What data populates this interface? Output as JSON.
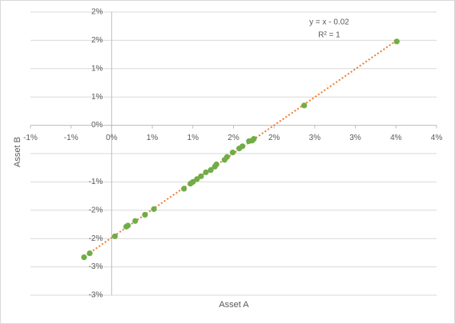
{
  "chart_data": {
    "type": "scatter",
    "x_label": "Asset A",
    "y_label": "Asset B",
    "trendline": {
      "equation": "y = x - 0.02",
      "r_squared": "R² = 1",
      "color": "#ed7d31"
    },
    "series": [
      {
        "name": "Asset B",
        "color": "#70ad47",
        "x": [
          -0.34,
          -0.27,
          0.04,
          0.18,
          0.2,
          0.29,
          0.41,
          0.52,
          0.89,
          0.97,
          1.0,
          1.05,
          1.1,
          1.16,
          1.22,
          1.27,
          1.29,
          1.39,
          1.42,
          1.49,
          1.57,
          1.61,
          1.69,
          1.73,
          1.75,
          2.37,
          3.51
        ],
        "values": [
          -2.33,
          -2.26,
          -1.96,
          -1.79,
          -1.77,
          -1.69,
          -1.58,
          -1.48,
          -1.12,
          -1.03,
          -1.0,
          -0.95,
          -0.9,
          -0.83,
          -0.79,
          -0.73,
          -0.69,
          -0.61,
          -0.56,
          -0.48,
          -0.41,
          -0.37,
          -0.28,
          -0.27,
          -0.24,
          0.35,
          1.48
        ]
      }
    ],
    "xlim": [
      -1,
      4
    ],
    "xticks": [
      {
        "value": -1,
        "label": "-1%"
      },
      {
        "value": -0.5,
        "label": "-1%"
      },
      {
        "value": 0,
        "label": "0%"
      },
      {
        "value": 0.5,
        "label": "1%"
      },
      {
        "value": 1,
        "label": "1%"
      },
      {
        "value": 1.5,
        "label": "2%"
      },
      {
        "value": 2,
        "label": "2%"
      },
      {
        "value": 2.5,
        "label": "3%"
      },
      {
        "value": 3,
        "label": "3%"
      },
      {
        "value": 3.5,
        "label": "4%"
      },
      {
        "value": 4,
        "label": "4%"
      }
    ],
    "ylim": [
      -3,
      2
    ],
    "yticks": [
      {
        "value": -3,
        "label": "-3%"
      },
      {
        "value": -2.5,
        "label": "-3%"
      },
      {
        "value": -2,
        "label": "-2%"
      },
      {
        "value": -1.5,
        "label": "-2%"
      },
      {
        "value": -1,
        "label": "-1%"
      },
      {
        "value": -0.5,
        "label": null
      },
      {
        "value": 0,
        "label": "0%"
      },
      {
        "value": 0.5,
        "label": "1%"
      },
      {
        "value": 1,
        "label": "1%"
      },
      {
        "value": 1.5,
        "label": "2%"
      },
      {
        "value": 2,
        "label": "2%"
      }
    ],
    "grid": true
  }
}
